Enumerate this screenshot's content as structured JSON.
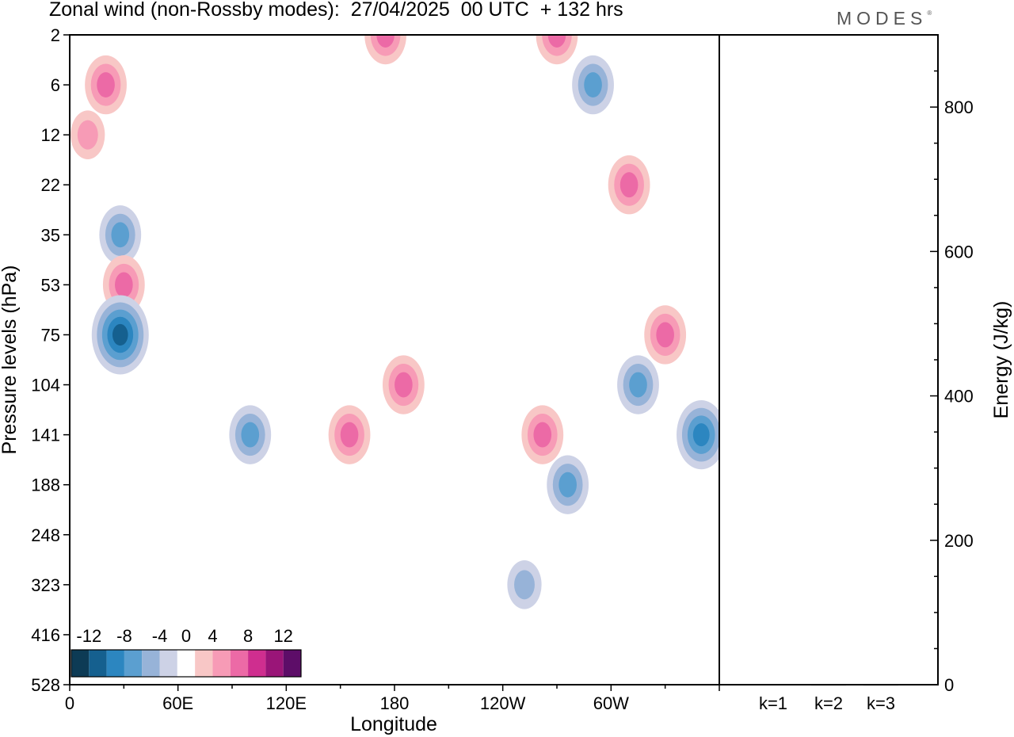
{
  "header": {
    "title": "Zonal wind (non-Rossby modes):  27/04/2025  00 UTC  + 132 hrs",
    "logo": "MODES",
    "logo_mark": "®"
  },
  "chart_data": [
    {
      "type": "heatmap",
      "title": "Zonal wind (non-Rossby modes):  27/04/2025  00 UTC  + 132 hrs",
      "xlabel": "Longitude",
      "ylabel": "Pressure levels (hPa)",
      "x_ticks": [
        "0",
        "60E",
        "120E",
        "180",
        "120W",
        "60W"
      ],
      "x_tick_positions_deg": [
        0,
        60,
        120,
        180,
        240,
        300
      ],
      "xlim": [
        0,
        360
      ],
      "y_ticks": [
        "2",
        "6",
        "12",
        "22",
        "35",
        "53",
        "75",
        "104",
        "141",
        "188",
        "248",
        "323",
        "416",
        "528"
      ],
      "y_scale": "pressure levels (top 2, bottom 528)",
      "colorbar": {
        "labels": [
          "-12",
          "-8",
          "-4",
          "0",
          "4",
          "8",
          "12"
        ],
        "levels": [
          -14,
          -12,
          -10,
          -8,
          -6,
          -4,
          -2,
          2,
          4,
          6,
          8,
          10,
          12,
          14
        ],
        "colors": [
          "#0d3b55",
          "#15608f",
          "#2c86c0",
          "#5b9fd0",
          "#97b3d8",
          "#cdd2e6",
          "#ffffff",
          "#f8c7c6",
          "#f79bb6",
          "#ec6aa6",
          "#cf2e8f",
          "#9a1578",
          "#5d0d68"
        ]
      },
      "features": [
        {
          "sign": "+",
          "lon": 20,
          "level": "6",
          "max": 6
        },
        {
          "sign": "+",
          "lon": 10,
          "level": "12",
          "max": 4
        },
        {
          "sign": "-",
          "lon": 28,
          "level": "35",
          "max": -6
        },
        {
          "sign": "+",
          "lon": 30,
          "level": "53",
          "max": 6
        },
        {
          "sign": "-",
          "lon": 28,
          "level": "75",
          "max": -10
        },
        {
          "sign": "-",
          "lon": 100,
          "level": "141",
          "max": -6
        },
        {
          "sign": "+",
          "lon": 155,
          "level": "141",
          "max": 6
        },
        {
          "sign": "+",
          "lon": 185,
          "level": "104",
          "max": 6
        },
        {
          "sign": "+",
          "lon": 262,
          "level": "141",
          "max": 6
        },
        {
          "sign": "-",
          "lon": 276,
          "level": "188",
          "max": -6
        },
        {
          "sign": "-",
          "lon": 252,
          "level": "323",
          "max": -4
        },
        {
          "sign": "+",
          "lon": 310,
          "level": "22",
          "max": 6
        },
        {
          "sign": "+",
          "lon": 330,
          "level": "75",
          "max": 6
        },
        {
          "sign": "-",
          "lon": 315,
          "level": "104",
          "max": -6
        },
        {
          "sign": "-",
          "lon": 350,
          "level": "141",
          "max": -8
        },
        {
          "sign": "-",
          "lon": 290,
          "level": "6",
          "max": -6
        },
        {
          "sign": "+",
          "lon": 270,
          "level": "2",
          "max": 6
        },
        {
          "sign": "+",
          "lon": 175,
          "level": "2",
          "max": 6
        }
      ]
    },
    {
      "type": "bar",
      "ylabel": "Energy (J/kg)",
      "categories": [
        "k=1",
        "k=2",
        "k=3"
      ],
      "values": [
        1,
        0.5,
        0.5
      ],
      "ylim": [
        0,
        900
      ],
      "y_ticks": [
        "0",
        "200",
        "400",
        "600",
        "800"
      ]
    }
  ]
}
